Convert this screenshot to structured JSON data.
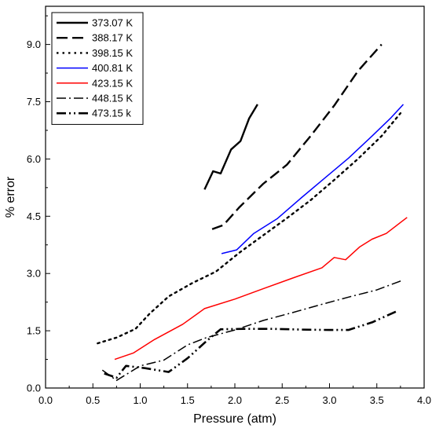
{
  "chart_data": {
    "type": "line",
    "xlabel": "Pressure (atm)",
    "ylabel": "% error",
    "xlim": [
      0.0,
      4.0
    ],
    "ylim": [
      0.0,
      10.0
    ],
    "xticks": [
      "0.0",
      "0.5",
      "1.0",
      "1.5",
      "2.0",
      "2.5",
      "3.0",
      "3.5",
      "4.0"
    ],
    "yticks": [
      "0.0",
      "1.5",
      "3.0",
      "4.5",
      "6.0",
      "7.5",
      "9.0"
    ],
    "legend_position": "top-left",
    "grid": false,
    "series": [
      {
        "name": "373.07 K",
        "color": "#000000",
        "style": "solid",
        "points": [
          [
            1.68,
            5.2
          ],
          [
            1.77,
            5.68
          ],
          [
            1.85,
            5.62
          ],
          [
            1.96,
            6.25
          ],
          [
            2.06,
            6.47
          ],
          [
            2.15,
            7.06
          ],
          [
            2.24,
            7.43
          ]
        ]
      },
      {
        "name": "388.17 K",
        "color": "#000000",
        "style": "dash",
        "points": [
          [
            1.76,
            4.16
          ],
          [
            1.88,
            4.27
          ],
          [
            2.05,
            4.74
          ],
          [
            2.3,
            5.35
          ],
          [
            2.55,
            5.85
          ],
          [
            2.8,
            6.6
          ],
          [
            3.05,
            7.4
          ],
          [
            3.3,
            8.3
          ],
          [
            3.55,
            9.0
          ]
        ]
      },
      {
        "name": "398.15 K",
        "color": "#000000",
        "style": "dot",
        "points": [
          [
            0.55,
            1.17
          ],
          [
            0.75,
            1.32
          ],
          [
            0.95,
            1.55
          ],
          [
            1.1,
            1.95
          ],
          [
            1.3,
            2.4
          ],
          [
            1.55,
            2.75
          ],
          [
            1.8,
            3.05
          ],
          [
            2.05,
            3.55
          ],
          [
            2.3,
            4.0
          ],
          [
            2.55,
            4.45
          ],
          [
            2.8,
            4.92
          ],
          [
            3.05,
            5.45
          ],
          [
            3.3,
            6.0
          ],
          [
            3.55,
            6.6
          ],
          [
            3.75,
            7.2
          ]
        ]
      },
      {
        "name": "400.81 K",
        "color": "#0000ff",
        "style": "solid",
        "points": [
          [
            1.86,
            3.52
          ],
          [
            2.02,
            3.62
          ],
          [
            2.2,
            4.05
          ],
          [
            2.45,
            4.44
          ],
          [
            2.7,
            4.98
          ],
          [
            2.95,
            5.5
          ],
          [
            3.2,
            6.02
          ],
          [
            3.45,
            6.6
          ],
          [
            3.65,
            7.08
          ],
          [
            3.78,
            7.43
          ]
        ]
      },
      {
        "name": "423.15 K",
        "color": "#ff0000",
        "style": "solid",
        "points": [
          [
            0.73,
            0.75
          ],
          [
            0.93,
            0.92
          ],
          [
            1.15,
            1.27
          ],
          [
            1.45,
            1.67
          ],
          [
            1.68,
            2.08
          ],
          [
            2.0,
            2.33
          ],
          [
            2.3,
            2.6
          ],
          [
            2.6,
            2.87
          ],
          [
            2.92,
            3.15
          ],
          [
            3.05,
            3.42
          ],
          [
            3.17,
            3.36
          ],
          [
            3.32,
            3.7
          ],
          [
            3.45,
            3.9
          ],
          [
            3.6,
            4.05
          ],
          [
            3.82,
            4.47
          ]
        ]
      },
      {
        "name": "448.15 K",
        "color": "#000000",
        "style": "dashdot",
        "points": [
          [
            0.6,
            0.47
          ],
          [
            0.75,
            0.2
          ],
          [
            1.0,
            0.58
          ],
          [
            1.25,
            0.73
          ],
          [
            1.5,
            1.13
          ],
          [
            1.7,
            1.32
          ],
          [
            2.0,
            1.52
          ],
          [
            2.3,
            1.77
          ],
          [
            2.6,
            1.97
          ],
          [
            2.9,
            2.18
          ],
          [
            3.2,
            2.38
          ],
          [
            3.5,
            2.57
          ],
          [
            3.77,
            2.82
          ]
        ]
      },
      {
        "name": "473.15 k",
        "color": "#000000",
        "style": "dashdotdot",
        "points": [
          [
            0.62,
            0.38
          ],
          [
            0.75,
            0.27
          ],
          [
            0.85,
            0.58
          ],
          [
            1.05,
            0.52
          ],
          [
            1.3,
            0.42
          ],
          [
            1.5,
            0.78
          ],
          [
            1.7,
            1.23
          ],
          [
            1.85,
            1.54
          ],
          [
            2.1,
            1.55
          ],
          [
            2.4,
            1.55
          ],
          [
            2.7,
            1.53
          ],
          [
            3.0,
            1.52
          ],
          [
            3.2,
            1.52
          ],
          [
            3.45,
            1.72
          ],
          [
            3.7,
            2.0
          ]
        ]
      }
    ]
  }
}
